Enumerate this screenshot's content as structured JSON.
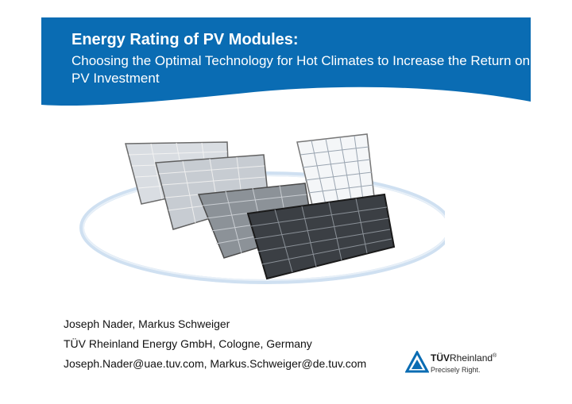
{
  "header": {
    "title": "Energy Rating of PV Modules:",
    "subtitle": "Choosing the Optimal Technology for Hot Climates to Increase the Return on PV Investment",
    "banner_color": "#0a6cb3"
  },
  "illustration": {
    "icon": "solar-panels-illustration",
    "ellipse_color": "#cfe0f1"
  },
  "authors": {
    "names": "Joseph Nader, Markus Schweiger",
    "affiliation": "TÜV Rheinland Energy GmbH, Cologne, Germany",
    "emails": "Joseph.Nader@uae.tuv.com, Markus.Schweiger@de.tuv.com"
  },
  "logo": {
    "brand_bold": "TÜV",
    "brand_rest": "Rheinland",
    "registered": "®",
    "tagline": "Precisely Right.",
    "color": "#0a6cb3"
  }
}
